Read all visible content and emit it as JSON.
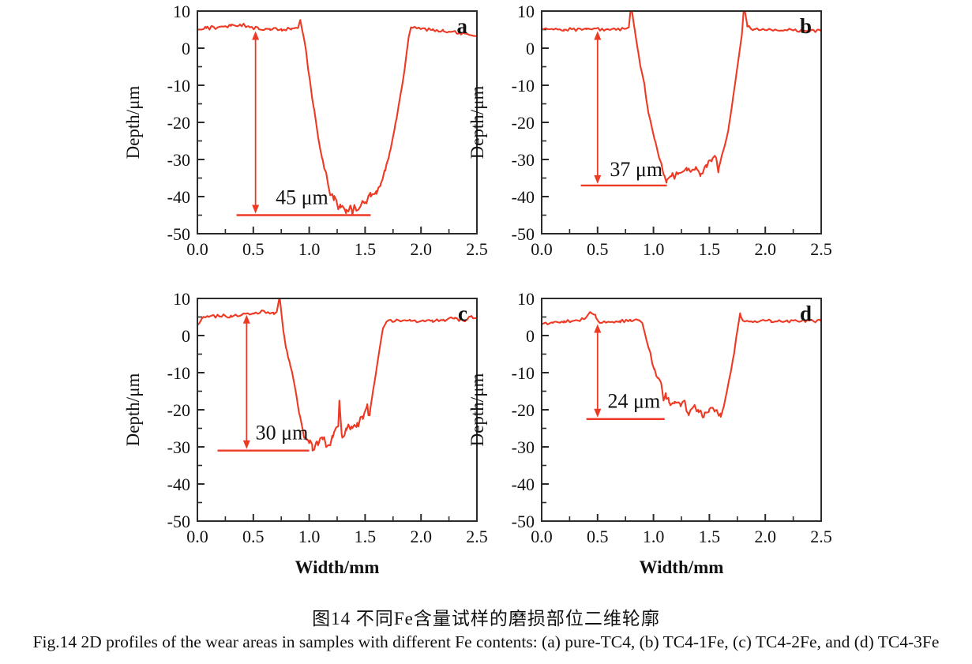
{
  "figure": {
    "caption_zh": "图14  不同Fe含量试样的磨损部位二维轮廓",
    "caption_en": "Fig.14  2D profiles of the wear areas in samples with different Fe contents: (a) pure-TC4, (b) TC4-1Fe, (c) TC4-2Fe, and (d) TC4-3Fe"
  },
  "colors": {
    "line": "#ee3a24",
    "axis": "#2b2b2b",
    "text": "#111111",
    "background": "#ffffff"
  },
  "chart_data": [
    {
      "type": "line",
      "panel_label": "a",
      "sample": "pure-TC4",
      "xlabel": "",
      "ylabel": "Depth/μm",
      "xlim": [
        0,
        2.5
      ],
      "ylim": [
        -50,
        10
      ],
      "xticks": [
        0.0,
        0.5,
        1.0,
        1.5,
        2.0,
        2.5
      ],
      "yticks": [
        10,
        0,
        -10,
        -20,
        -30,
        -40,
        -50
      ],
      "grid": false,
      "legend": "none",
      "wear_depth_um": 45,
      "annotation": {
        "label": "45 μm",
        "arrow_x": 0.52,
        "surface_y": 5,
        "depth_y": -45,
        "hline": [
          0.35,
          1.55
        ],
        "text_x": 0.7,
        "text_y": -42
      },
      "profile_keypoints": [
        [
          0,
          5
        ],
        [
          0.08,
          5.4
        ],
        [
          0.18,
          5.6
        ],
        [
          0.3,
          6
        ],
        [
          0.38,
          6.4
        ],
        [
          0.46,
          5.9
        ],
        [
          0.55,
          5.1
        ],
        [
          0.65,
          4.9
        ],
        [
          0.75,
          5.2
        ],
        [
          0.84,
          5
        ],
        [
          0.9,
          5.4
        ],
        [
          0.92,
          7.6
        ],
        [
          0.96,
          1.5
        ],
        [
          1.0,
          -7.5
        ],
        [
          1.04,
          -16
        ],
        [
          1.08,
          -24
        ],
        [
          1.12,
          -30
        ],
        [
          1.17,
          -37
        ],
        [
          1.22,
          -41
        ],
        [
          1.28,
          -43
        ],
        [
          1.33,
          -44.5
        ],
        [
          1.38,
          -43.5
        ],
        [
          1.44,
          -43.5
        ],
        [
          1.5,
          -41.5
        ],
        [
          1.55,
          -40
        ],
        [
          1.6,
          -38.5
        ],
        [
          1.64,
          -36.5
        ],
        [
          1.68,
          -33
        ],
        [
          1.72,
          -28
        ],
        [
          1.77,
          -20.5
        ],
        [
          1.82,
          -12
        ],
        [
          1.86,
          -4
        ],
        [
          1.89,
          3
        ],
        [
          1.91,
          5.6
        ],
        [
          2.0,
          5.2
        ],
        [
          2.1,
          4.9
        ],
        [
          2.2,
          4.6
        ],
        [
          2.35,
          4.1
        ],
        [
          2.5,
          3.3
        ]
      ],
      "noise_segments": [
        [
          0,
          0.9,
          0.5
        ],
        [
          0.96,
          1.14,
          0.7
        ],
        [
          1.14,
          1.68,
          1.4
        ],
        [
          1.68,
          1.87,
          0.5
        ],
        [
          1.91,
          2.5,
          0.4
        ]
      ]
    },
    {
      "type": "line",
      "panel_label": "b",
      "sample": "TC4-1Fe",
      "xlabel": "",
      "ylabel": "Depth/μm",
      "xlim": [
        0,
        2.5
      ],
      "ylim": [
        -50,
        10
      ],
      "xticks": [
        0.0,
        0.5,
        1.0,
        1.5,
        2.0,
        2.5
      ],
      "yticks": [
        10,
        0,
        -10,
        -20,
        -30,
        -40,
        -50
      ],
      "grid": false,
      "legend": "none",
      "wear_depth_um": 37,
      "annotation": {
        "label": "37 μm",
        "arrow_x": 0.5,
        "surface_y": 5,
        "depth_y": -37,
        "hline": [
          0.35,
          1.12
        ],
        "text_x": 0.61,
        "text_y": -34.5
      },
      "profile_keypoints": [
        [
          0,
          5.2
        ],
        [
          0.2,
          5
        ],
        [
          0.4,
          5.1
        ],
        [
          0.6,
          5
        ],
        [
          0.74,
          5.2
        ],
        [
          0.78,
          5.6
        ],
        [
          0.8,
          11.5
        ],
        [
          0.83,
          5.5
        ],
        [
          0.86,
          -0.5
        ],
        [
          0.9,
          -7
        ],
        [
          0.93,
          -12.5
        ],
        [
          0.96,
          -18
        ],
        [
          0.99,
          -22
        ],
        [
          1.02,
          -25.5
        ],
        [
          1.05,
          -29.5
        ],
        [
          1.07,
          -31
        ],
        [
          1.09,
          -34
        ],
        [
          1.12,
          -35.5
        ],
        [
          1.16,
          -34.5
        ],
        [
          1.22,
          -34
        ],
        [
          1.3,
          -33
        ],
        [
          1.38,
          -32
        ],
        [
          1.42,
          -34.5
        ],
        [
          1.47,
          -31.5
        ],
        [
          1.52,
          -30.5
        ],
        [
          1.56,
          -29.5
        ],
        [
          1.58,
          -33.5
        ],
        [
          1.61,
          -29
        ],
        [
          1.64,
          -26
        ],
        [
          1.67,
          -22
        ],
        [
          1.7,
          -16
        ],
        [
          1.73,
          -9.5
        ],
        [
          1.76,
          -3
        ],
        [
          1.79,
          3.5
        ],
        [
          1.81,
          11.5
        ],
        [
          1.84,
          5.8
        ],
        [
          1.9,
          5.1
        ],
        [
          2.05,
          5
        ],
        [
          2.2,
          4.9
        ],
        [
          2.35,
          4.7
        ],
        [
          2.5,
          4.6
        ]
      ],
      "noise_segments": [
        [
          0,
          0.78,
          0.45
        ],
        [
          0.88,
          1.06,
          0.9
        ],
        [
          1.1,
          1.6,
          1.0
        ],
        [
          1.84,
          2.5,
          0.4
        ]
      ]
    },
    {
      "type": "line",
      "panel_label": "c",
      "sample": "TC4-2Fe",
      "xlabel": "Width/mm",
      "ylabel": "Depth/μm",
      "xlim": [
        0,
        2.5
      ],
      "ylim": [
        -50,
        10
      ],
      "xticks": [
        0.0,
        0.5,
        1.0,
        1.5,
        2.0,
        2.5
      ],
      "yticks": [
        10,
        0,
        -10,
        -20,
        -30,
        -40,
        -50
      ],
      "grid": false,
      "legend": "none",
      "wear_depth_um": 30,
      "annotation": {
        "label": "30 μm",
        "arrow_x": 0.44,
        "surface_y": 6,
        "depth_y": -31,
        "hline": [
          0.18,
          1.0
        ],
        "text_x": 0.52,
        "text_y": -28
      },
      "profile_keypoints": [
        [
          0,
          2.8
        ],
        [
          0.04,
          4.6
        ],
        [
          0.1,
          5
        ],
        [
          0.2,
          5.2
        ],
        [
          0.3,
          5.4
        ],
        [
          0.4,
          5.7
        ],
        [
          0.5,
          6
        ],
        [
          0.57,
          6.6
        ],
        [
          0.62,
          6.1
        ],
        [
          0.68,
          6.2
        ],
        [
          0.71,
          6.4
        ],
        [
          0.735,
          10.5
        ],
        [
          0.77,
          1
        ],
        [
          0.8,
          -4
        ],
        [
          0.83,
          -8
        ],
        [
          0.86,
          -12
        ],
        [
          0.89,
          -17
        ],
        [
          0.91,
          -21
        ],
        [
          0.94,
          -25
        ],
        [
          0.97,
          -27.5
        ],
        [
          1.0,
          -29
        ],
        [
          1.03,
          -31
        ],
        [
          1.07,
          -28.5
        ],
        [
          1.12,
          -28
        ],
        [
          1.17,
          -29.5
        ],
        [
          1.21,
          -27.5
        ],
        [
          1.26,
          -24.5
        ],
        [
          1.27,
          -17.5
        ],
        [
          1.29,
          -26.5
        ],
        [
          1.33,
          -25
        ],
        [
          1.38,
          -24.5
        ],
        [
          1.43,
          -23.5
        ],
        [
          1.48,
          -22.5
        ],
        [
          1.52,
          -18.5
        ],
        [
          1.54,
          -21.5
        ],
        [
          1.57,
          -15
        ],
        [
          1.6,
          -9.5
        ],
        [
          1.63,
          -3.5
        ],
        [
          1.66,
          2
        ],
        [
          1.7,
          3.9
        ],
        [
          1.8,
          4.1
        ],
        [
          1.9,
          4.3
        ],
        [
          2.0,
          3.9
        ],
        [
          2.1,
          4.1
        ],
        [
          2.2,
          4.3
        ],
        [
          2.3,
          4.6
        ],
        [
          2.4,
          4.1
        ],
        [
          2.45,
          5.3
        ],
        [
          2.5,
          4.7
        ]
      ],
      "noise_segments": [
        [
          0,
          0.71,
          0.55
        ],
        [
          0.78,
          0.93,
          0.7
        ],
        [
          0.95,
          1.55,
          1.5
        ],
        [
          1.68,
          2.5,
          0.5
        ]
      ]
    },
    {
      "type": "line",
      "panel_label": "d",
      "sample": "TC4-3Fe",
      "xlabel": "Width/mm",
      "ylabel": "Depth/μm",
      "xlim": [
        0,
        2.5
      ],
      "ylim": [
        -50,
        10
      ],
      "xticks": [
        0.0,
        0.5,
        1.0,
        1.5,
        2.0,
        2.5
      ],
      "yticks": [
        10,
        0,
        -10,
        -20,
        -30,
        -40,
        -50
      ],
      "grid": false,
      "legend": "none",
      "wear_depth_um": 24,
      "annotation": {
        "label": "24 μm",
        "arrow_x": 0.5,
        "surface_y": 3.5,
        "depth_y": -22.5,
        "hline": [
          0.4,
          1.1
        ],
        "text_x": 0.59,
        "text_y": -19.5
      },
      "profile_keypoints": [
        [
          0,
          3
        ],
        [
          0.1,
          3.4
        ],
        [
          0.2,
          3.9
        ],
        [
          0.3,
          4.1
        ],
        [
          0.38,
          4.4
        ],
        [
          0.44,
          6.2
        ],
        [
          0.48,
          5.6
        ],
        [
          0.52,
          3.4
        ],
        [
          0.6,
          3.7
        ],
        [
          0.7,
          3.9
        ],
        [
          0.8,
          3.9
        ],
        [
          0.87,
          4.2
        ],
        [
          0.9,
          3.4
        ],
        [
          0.94,
          -1.5
        ],
        [
          0.98,
          -6
        ],
        [
          1.01,
          -9
        ],
        [
          1.04,
          -11.5
        ],
        [
          1.07,
          -13
        ],
        [
          1.09,
          -17.5
        ],
        [
          1.11,
          -15.5
        ],
        [
          1.14,
          -18
        ],
        [
          1.19,
          -17.8
        ],
        [
          1.24,
          -18.5
        ],
        [
          1.28,
          -17.5
        ],
        [
          1.31,
          -21
        ],
        [
          1.35,
          -19.5
        ],
        [
          1.4,
          -20
        ],
        [
          1.45,
          -22
        ],
        [
          1.5,
          -19.8
        ],
        [
          1.55,
          -20.2
        ],
        [
          1.6,
          -21
        ],
        [
          1.63,
          -19
        ],
        [
          1.66,
          -14.5
        ],
        [
          1.69,
          -10
        ],
        [
          1.72,
          -5
        ],
        [
          1.74,
          -0.5
        ],
        [
          1.76,
          3.2
        ],
        [
          1.775,
          6
        ],
        [
          1.8,
          4
        ],
        [
          1.9,
          3.8
        ],
        [
          2.05,
          4
        ],
        [
          2.2,
          3.8
        ],
        [
          2.35,
          4
        ],
        [
          2.5,
          3.9
        ]
      ],
      "noise_segments": [
        [
          0,
          0.88,
          0.45
        ],
        [
          0.95,
          1.07,
          0.7
        ],
        [
          1.09,
          1.62,
          1.1
        ],
        [
          1.78,
          2.5,
          0.4
        ]
      ]
    }
  ]
}
